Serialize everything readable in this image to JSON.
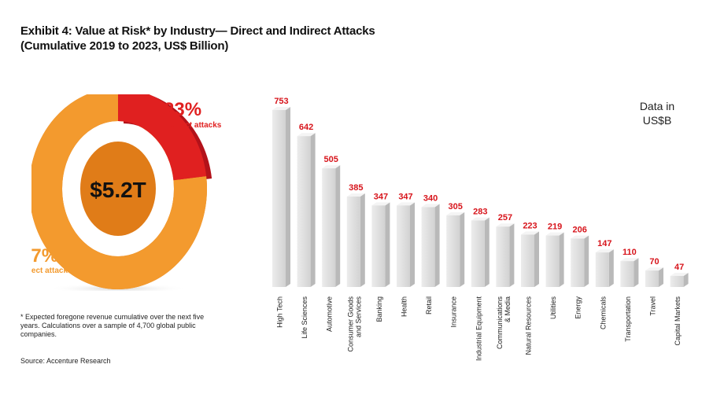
{
  "title_line1": "Exhibit 4: Value at Risk* by Industry— Direct and Indirect Attacks",
  "title_line2": "(Cumulative 2019 to 2023, US$ Billion)",
  "donut": {
    "total_label": "$5.2T",
    "indirect": {
      "pct_label": "23%",
      "label": "Indirect attacks",
      "value": 23,
      "color": "#e02020"
    },
    "direct": {
      "pct_label": "77%",
      "label": "Direct attacks",
      "value": 77,
      "color": "#f39a2e"
    }
  },
  "footnote": "* Expected foregone revenue cumulative over the next five years. Calculations over a sample of 4,700 global public companies.",
  "source": "Source: Accenture Research",
  "unit_note_line1": "Data in",
  "unit_note_line2": "US$B",
  "chart_data": [
    {
      "type": "pie",
      "title": "Exhibit 4: Value at Risk* by Industry— Direct and Indirect Attacks (Cumulative 2019 to 2023, US$ Billion)",
      "center_label": "$5.2T",
      "slices": [
        {
          "label": "Indirect attacks",
          "value": 23
        },
        {
          "label": "Direct attacks",
          "value": 77
        }
      ]
    },
    {
      "type": "bar",
      "categories": [
        "High Tech",
        "Life Sciences",
        "Automotive",
        "Consumer Goods and Services",
        "Banking",
        "Health",
        "Retail",
        "Insurance",
        "Industrial Equipment",
        "Communications & Media",
        "Natural Resources",
        "Utilities",
        "Energy",
        "Chemicals",
        "Transportation",
        "Travel",
        "Capital Markets"
      ],
      "values": [
        753,
        642,
        505,
        385,
        347,
        347,
        340,
        305,
        283,
        257,
        223,
        219,
        206,
        147,
        110,
        70,
        47
      ],
      "ylim": [
        0,
        753
      ],
      "grid": false,
      "value_color": "#d7141b"
    }
  ]
}
